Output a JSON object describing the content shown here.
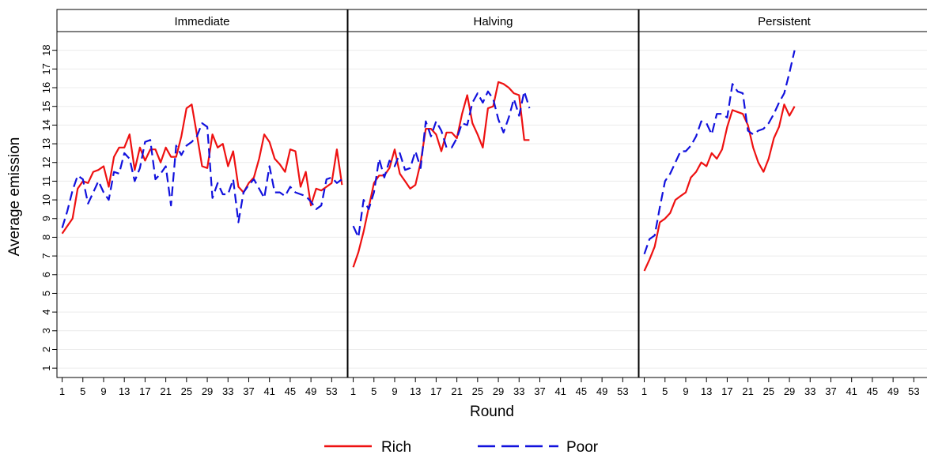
{
  "chart_data": {
    "type": "line",
    "xlabel": "Round",
    "ylabel": "Average emission",
    "ylim": [
      0.5,
      19
    ],
    "yticks": [
      1,
      2,
      3,
      4,
      5,
      6,
      7,
      8,
      9,
      10,
      11,
      12,
      13,
      14,
      15,
      16,
      17,
      18
    ],
    "xlim": [
      0,
      56
    ],
    "xticks": [
      1,
      5,
      9,
      13,
      17,
      21,
      25,
      29,
      33,
      37,
      41,
      45,
      49,
      53
    ],
    "grid": true,
    "legend_position": "bottom",
    "colors": {
      "rich": "#ee1111",
      "poor": "#1111dd"
    },
    "legend": [
      {
        "name": "Rich",
        "style": "solid",
        "color": "#ee1111"
      },
      {
        "name": "Poor",
        "style": "dashed",
        "color": "#1111dd"
      }
    ],
    "panels": [
      {
        "title": "Immediate",
        "series": [
          {
            "name": "Rich",
            "x": [
              1,
              2,
              3,
              4,
              5,
              6,
              7,
              8,
              9,
              10,
              11,
              12,
              13,
              14,
              15,
              16,
              17,
              18,
              19,
              20,
              21,
              22,
              23,
              24,
              25,
              26,
              27,
              28,
              29,
              30,
              31,
              32,
              33,
              34,
              35,
              36,
              37,
              38,
              39,
              40,
              41,
              42,
              43,
              44,
              45,
              46,
              47,
              48,
              49,
              50,
              51,
              52,
              53,
              54,
              55
            ],
            "values": [
              8.2,
              8.6,
              9.0,
              10.6,
              11.0,
              10.9,
              11.5,
              11.6,
              11.8,
              10.7,
              12.3,
              12.8,
              12.8,
              13.5,
              11.6,
              12.8,
              12.1,
              12.7,
              12.7,
              12.0,
              12.8,
              12.3,
              12.3,
              13.4,
              14.9,
              15.1,
              13.5,
              11.8,
              11.7,
              13.5,
              12.8,
              13.0,
              11.8,
              12.6,
              10.7,
              10.4,
              10.9,
              11.2,
              12.2,
              13.5,
              13.1,
              12.2,
              11.9,
              11.5,
              12.7,
              12.6,
              10.7,
              11.5,
              9.7,
              10.6,
              10.5,
              10.7,
              10.9,
              12.7,
              10.8
            ]
          },
          {
            "name": "Poor",
            "x": [
              1,
              2,
              3,
              4,
              5,
              6,
              7,
              8,
              9,
              10,
              11,
              12,
              13,
              14,
              15,
              16,
              17,
              18,
              19,
              20,
              21,
              22,
              23,
              24,
              25,
              26,
              27,
              28,
              29,
              30,
              31,
              32,
              33,
              34,
              35,
              36,
              37,
              38,
              39,
              40,
              41,
              42,
              43,
              44,
              45,
              46,
              47,
              48,
              49,
              50,
              51,
              52,
              53,
              54,
              55
            ],
            "values": [
              8.5,
              9.4,
              10.5,
              11.3,
              11.1,
              9.8,
              10.4,
              11.0,
              10.4,
              10.0,
              11.5,
              11.4,
              12.5,
              12.2,
              11.0,
              11.7,
              13.1,
              13.2,
              11.1,
              11.4,
              11.8,
              9.7,
              12.9,
              12.4,
              12.9,
              13.1,
              13.4,
              14.1,
              13.9,
              10.1,
              10.9,
              10.3,
              10.3,
              11.1,
              8.8,
              10.4,
              10.8,
              11.1,
              10.6,
              10.1,
              11.8,
              10.4,
              10.4,
              10.2,
              10.7,
              10.4,
              10.3,
              10.2,
              9.9,
              9.5,
              9.7,
              11.1,
              11.2,
              10.9,
              11.1
            ]
          }
        ]
      },
      {
        "title": "Halving",
        "series": [
          {
            "name": "Rich",
            "x": [
              1,
              2,
              3,
              4,
              5,
              6,
              7,
              8,
              9,
              10,
              11,
              12,
              13,
              14,
              15,
              16,
              17,
              18,
              19,
              20,
              21,
              22,
              23,
              24,
              25,
              26,
              27,
              28,
              29,
              30,
              31,
              32,
              33,
              34,
              35
            ],
            "values": [
              6.4,
              7.2,
              8.3,
              9.6,
              10.9,
              11.3,
              11.3,
              11.7,
              12.7,
              11.4,
              11.0,
              10.6,
              10.8,
              12.0,
              13.8,
              13.8,
              13.5,
              12.6,
              13.6,
              13.6,
              13.3,
              14.6,
              15.6,
              14.1,
              13.5,
              12.8,
              14.9,
              15.0,
              16.3,
              16.2,
              16.0,
              15.7,
              15.6,
              13.2,
              13.2
            ]
          },
          {
            "name": "Poor",
            "x": [
              1,
              2,
              3,
              4,
              5,
              6,
              7,
              8,
              9,
              10,
              11,
              12,
              13,
              14,
              15,
              16,
              17,
              18,
              19,
              20,
              21,
              22,
              23,
              24,
              25,
              26,
              27,
              28,
              29,
              30,
              31,
              32,
              33,
              34,
              35
            ],
            "values": [
              8.6,
              8.0,
              10.0,
              9.5,
              10.4,
              12.2,
              11.2,
              12.1,
              11.8,
              12.5,
              11.6,
              11.7,
              12.6,
              11.7,
              14.2,
              13.4,
              14.2,
              13.7,
              12.8,
              12.8,
              13.3,
              14.1,
              14.0,
              15.2,
              15.7,
              15.2,
              15.8,
              15.4,
              14.3,
              13.6,
              14.4,
              15.4,
              14.5,
              15.8,
              14.9
            ]
          }
        ]
      },
      {
        "title": "Persistent",
        "series": [
          {
            "name": "Rich",
            "x": [
              1,
              2,
              3,
              4,
              5,
              6,
              7,
              8,
              9,
              10,
              11,
              12,
              13,
              14,
              15,
              16,
              17,
              18,
              19,
              20,
              21,
              22,
              23,
              24,
              25,
              26,
              27,
              28,
              29,
              30,
              31
            ],
            "values": [
              6.2,
              6.8,
              7.5,
              8.8,
              9.0,
              9.3,
              10.0,
              10.2,
              10.4,
              11.2,
              11.5,
              12.0,
              11.8,
              12.5,
              12.2,
              12.7,
              13.9,
              14.8,
              14.7,
              14.6,
              14.0,
              12.8,
              12.0,
              11.5,
              12.2,
              13.3,
              13.9,
              15.1,
              14.5,
              15.0,
              null
            ]
          },
          {
            "name": "Poor",
            "x": [
              1,
              2,
              3,
              4,
              5,
              6,
              7,
              8,
              9,
              10,
              11,
              12,
              13,
              14,
              15,
              16,
              17,
              18,
              19,
              20,
              21,
              22,
              23,
              24,
              25,
              26,
              27,
              28,
              29,
              30,
              31
            ],
            "values": [
              7.1,
              7.9,
              8.1,
              9.6,
              11.0,
              11.4,
              12.0,
              12.6,
              12.6,
              12.9,
              13.4,
              14.2,
              14.1,
              13.5,
              14.6,
              14.6,
              14.4,
              16.2,
              15.8,
              15.7,
              13.7,
              13.5,
              13.7,
              13.8,
              14.1,
              14.6,
              15.2,
              15.7,
              16.8,
              18.0,
              null
            ]
          }
        ]
      }
    ]
  }
}
